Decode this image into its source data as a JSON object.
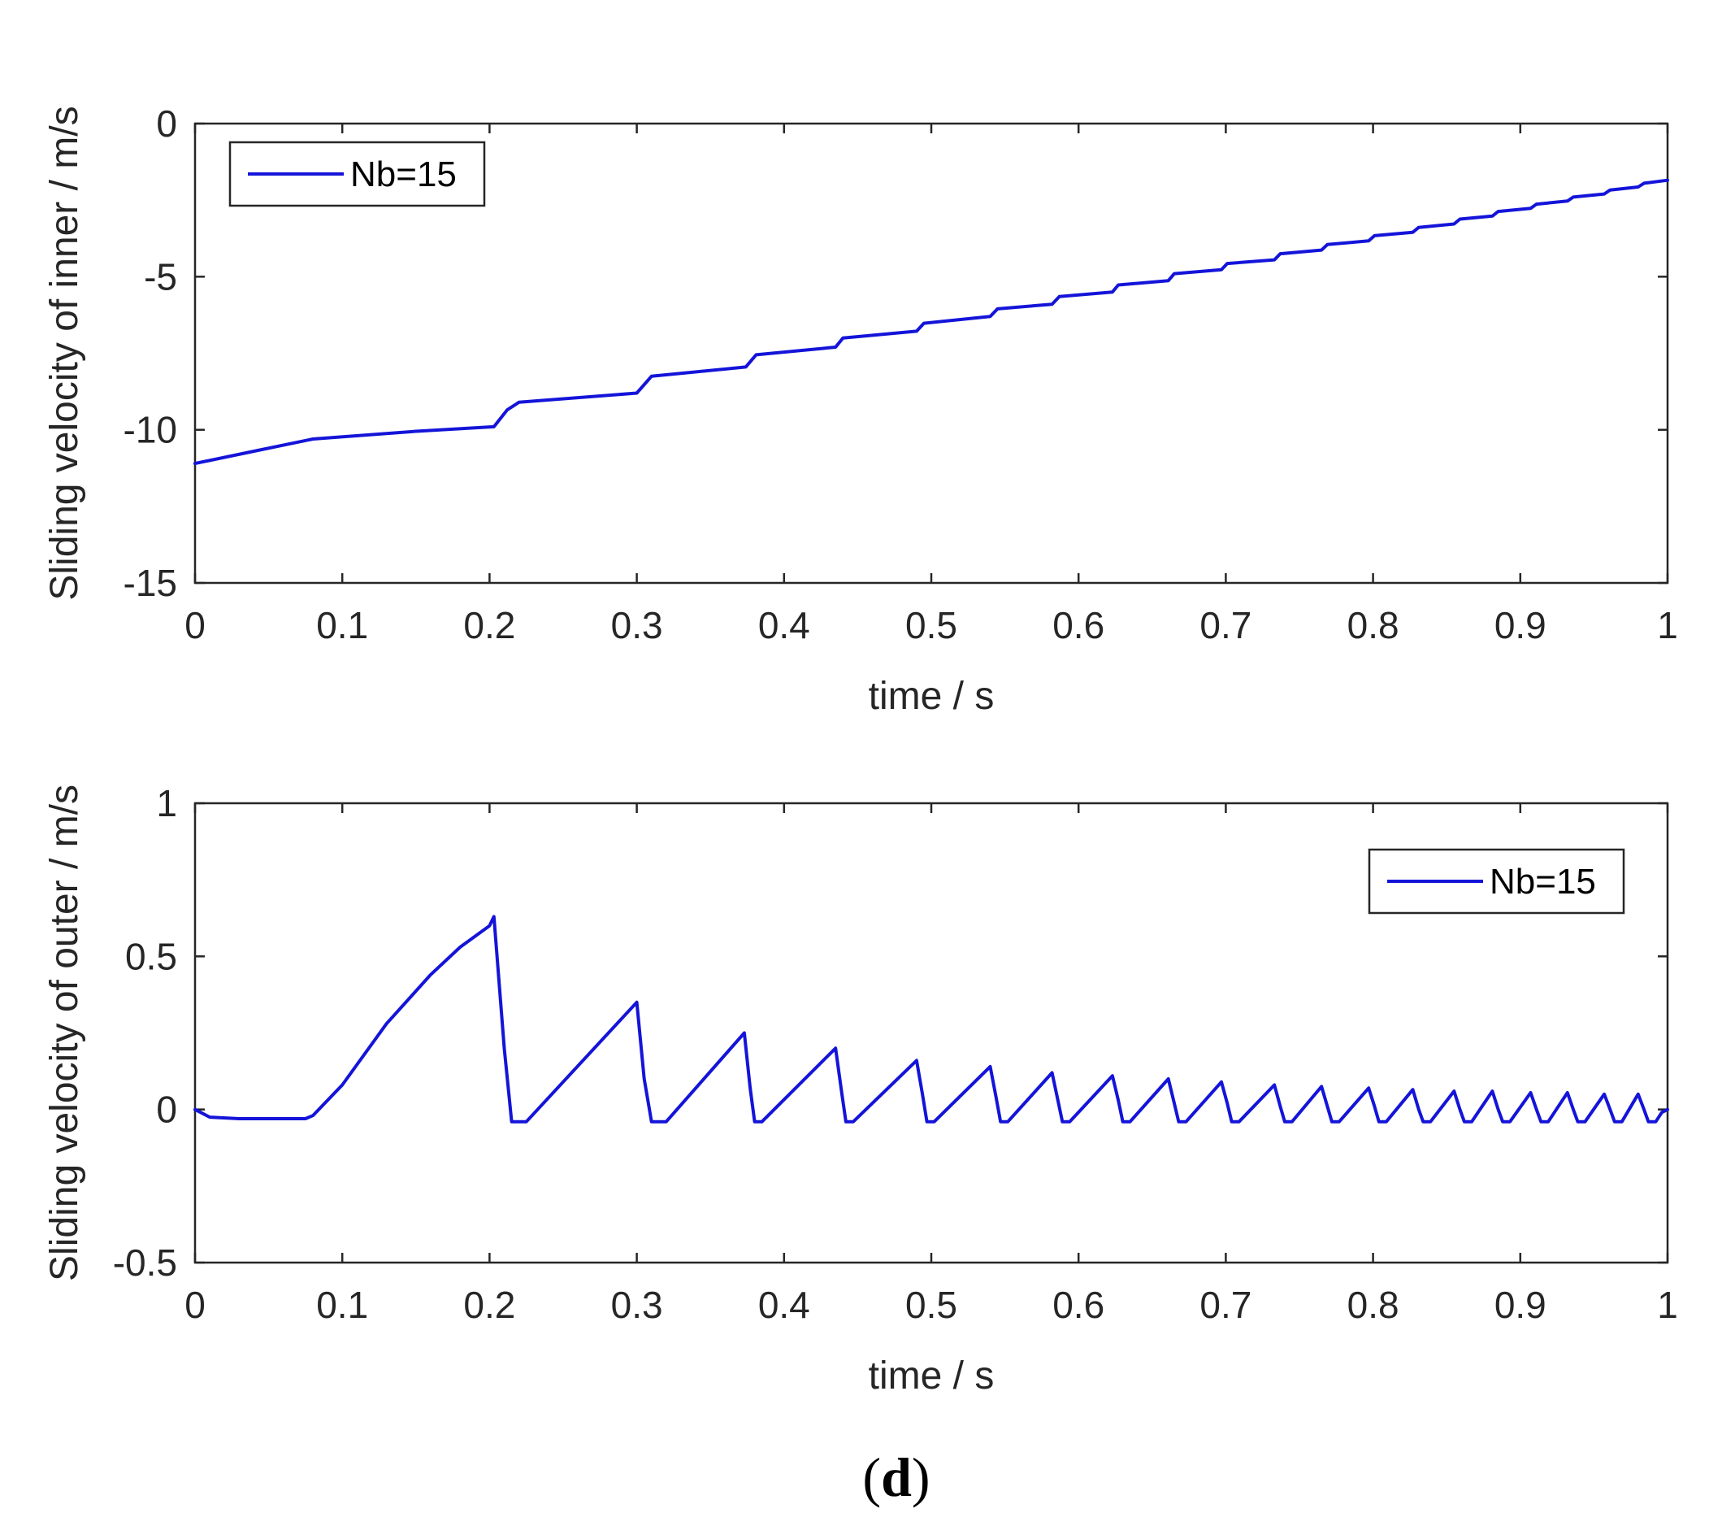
{
  "caption": {
    "open": "(",
    "letter": "d",
    "close": ")"
  },
  "colors": {
    "series": "#1414d9",
    "axis": "#262626",
    "legend_border": "#262626"
  },
  "chart_data": [
    {
      "type": "line",
      "title": "",
      "xlabel": "time  /  s",
      "ylabel": "Sliding velocity of inner / m/s",
      "xlim": [
        0,
        1
      ],
      "ylim": [
        -15,
        0
      ],
      "xticks": [
        0,
        0.1,
        0.2,
        0.3,
        0.4,
        0.5,
        0.6,
        0.7,
        0.8,
        0.9,
        1
      ],
      "xtick_labels": [
        "0",
        "0.1",
        "0.2",
        "0.3",
        "0.4",
        "0.5",
        "0.6",
        "0.7",
        "0.8",
        "0.9",
        "1"
      ],
      "yticks": [
        -15,
        -10,
        -5,
        0
      ],
      "ytick_labels": [
        "-15",
        "-10",
        "-5",
        "0"
      ],
      "legend_position": "top-left",
      "series": [
        {
          "name": "Nb=15",
          "x": [
            0,
            0.04,
            0.08,
            0.15,
            0.203,
            0.212,
            0.22,
            0.3,
            0.31,
            0.374,
            0.381,
            0.435,
            0.44,
            0.49,
            0.495,
            0.54,
            0.545,
            0.582,
            0.587,
            0.623,
            0.627,
            0.661,
            0.665,
            0.697,
            0.701,
            0.733,
            0.737,
            0.765,
            0.769,
            0.797,
            0.801,
            0.827,
            0.831,
            0.855,
            0.859,
            0.881,
            0.885,
            0.907,
            0.911,
            0.932,
            0.936,
            0.957,
            0.961,
            0.98,
            0.984,
            1.0
          ],
          "y": [
            -11.1,
            -10.7,
            -10.3,
            -10.05,
            -9.9,
            -9.35,
            -9.1,
            -8.8,
            -8.25,
            -7.95,
            -7.55,
            -7.3,
            -7.0,
            -6.78,
            -6.52,
            -6.3,
            -6.05,
            -5.9,
            -5.65,
            -5.5,
            -5.27,
            -5.13,
            -4.9,
            -4.77,
            -4.57,
            -4.45,
            -4.25,
            -4.13,
            -3.95,
            -3.83,
            -3.66,
            -3.55,
            -3.39,
            -3.28,
            -3.12,
            -3.02,
            -2.87,
            -2.77,
            -2.63,
            -2.53,
            -2.4,
            -2.3,
            -2.17,
            -2.07,
            -1.95,
            -1.85
          ]
        }
      ]
    },
    {
      "type": "line",
      "title": "",
      "xlabel": "time  /  s",
      "ylabel": "Sliding velocity of outer / m/s",
      "xlim": [
        0,
        1
      ],
      "ylim": [
        -0.5,
        1
      ],
      "xticks": [
        0,
        0.1,
        0.2,
        0.3,
        0.4,
        0.5,
        0.6,
        0.7,
        0.8,
        0.9,
        1
      ],
      "xtick_labels": [
        "0",
        "0.1",
        "0.2",
        "0.3",
        "0.4",
        "0.5",
        "0.6",
        "0.7",
        "0.8",
        "0.9",
        "1"
      ],
      "yticks": [
        -0.5,
        0,
        0.5,
        1
      ],
      "ytick_labels": [
        "-0.5",
        "0",
        "0.5",
        "1"
      ],
      "legend_position": "top-right",
      "series": [
        {
          "name": "Nb=15",
          "x": [
            0,
            0.01,
            0.03,
            0.075,
            0.08,
            0.1,
            0.13,
            0.16,
            0.18,
            0.2,
            0.203,
            0.21,
            0.215,
            0.225,
            0.3,
            0.305,
            0.31,
            0.32,
            0.373,
            0.377,
            0.38,
            0.385,
            0.435,
            0.439,
            0.442,
            0.447,
            0.49,
            0.494,
            0.497,
            0.502,
            0.54,
            0.544,
            0.547,
            0.552,
            0.582,
            0.586,
            0.589,
            0.594,
            0.623,
            0.627,
            0.63,
            0.635,
            0.661,
            0.665,
            0.668,
            0.673,
            0.697,
            0.701,
            0.704,
            0.709,
            0.733,
            0.737,
            0.74,
            0.745,
            0.765,
            0.769,
            0.772,
            0.777,
            0.797,
            0.801,
            0.804,
            0.809,
            0.827,
            0.831,
            0.834,
            0.839,
            0.855,
            0.859,
            0.862,
            0.867,
            0.881,
            0.885,
            0.888,
            0.893,
            0.907,
            0.911,
            0.914,
            0.919,
            0.932,
            0.936,
            0.939,
            0.944,
            0.957,
            0.961,
            0.964,
            0.969,
            0.98,
            0.984,
            0.987,
            0.992,
            0.996,
            1.0
          ],
          "y": [
            0,
            -0.025,
            -0.03,
            -0.03,
            -0.02,
            0.08,
            0.28,
            0.44,
            0.53,
            0.6,
            0.63,
            0.2,
            -0.04,
            -0.04,
            0.35,
            0.1,
            -0.04,
            -0.04,
            0.25,
            0.07,
            -0.04,
            -0.04,
            0.2,
            0.06,
            -0.04,
            -0.04,
            0.16,
            0.05,
            -0.04,
            -0.04,
            0.14,
            0.04,
            -0.04,
            -0.04,
            0.12,
            0.03,
            -0.04,
            -0.04,
            0.11,
            0.03,
            -0.04,
            -0.04,
            0.1,
            0.02,
            -0.04,
            -0.04,
            0.09,
            0.02,
            -0.04,
            -0.04,
            0.08,
            0.01,
            -0.04,
            -0.04,
            0.075,
            0.01,
            -0.04,
            -0.04,
            0.07,
            0.01,
            -0.04,
            -0.04,
            0.065,
            0.0,
            -0.04,
            -0.04,
            0.06,
            0.0,
            -0.04,
            -0.04,
            0.06,
            0.0,
            -0.04,
            -0.04,
            0.055,
            0.0,
            -0.04,
            -0.04,
            0.055,
            0.0,
            -0.04,
            -0.04,
            0.05,
            0.0,
            -0.04,
            -0.04,
            0.05,
            0.0,
            -0.04,
            -0.04,
            -0.01,
            0.0
          ]
        }
      ]
    }
  ]
}
